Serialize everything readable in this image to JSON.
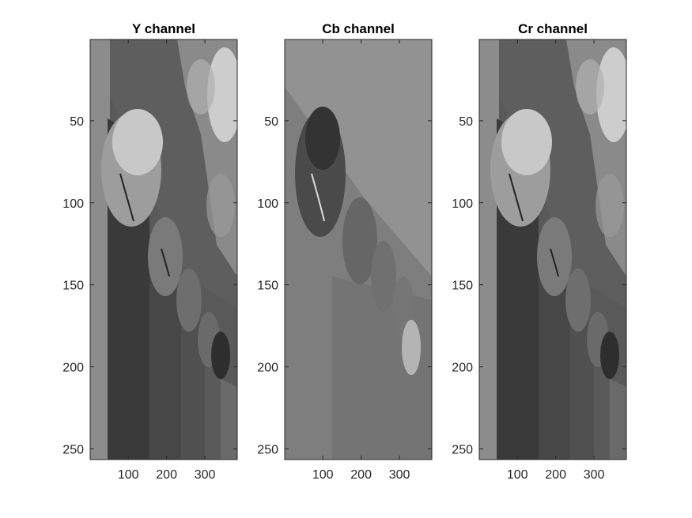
{
  "chart_data": [
    {
      "type": "heatmap",
      "title": "Y channel",
      "colormap": "gray",
      "xlim": [
        0.5,
        384.5
      ],
      "ylim": [
        0.5,
        256.5
      ],
      "y_reversed": true,
      "xticks": [
        100,
        200,
        300
      ],
      "yticks": [
        50,
        100,
        150,
        200,
        250
      ]
    },
    {
      "type": "heatmap",
      "title": "Cb channel",
      "colormap": "gray",
      "xlim": [
        0.5,
        384.5
      ],
      "ylim": [
        0.5,
        256.5
      ],
      "y_reversed": true,
      "xticks": [
        100,
        200,
        300
      ],
      "yticks": [
        50,
        100,
        150,
        200,
        250
      ]
    },
    {
      "type": "heatmap",
      "title": "Cr channel",
      "colormap": "gray",
      "xlim": [
        0.5,
        384.5
      ],
      "ylim": [
        0.5,
        256.5
      ],
      "y_reversed": true,
      "xticks": [
        100,
        200,
        300
      ],
      "yticks": [
        50,
        100,
        150,
        200,
        250
      ]
    }
  ]
}
